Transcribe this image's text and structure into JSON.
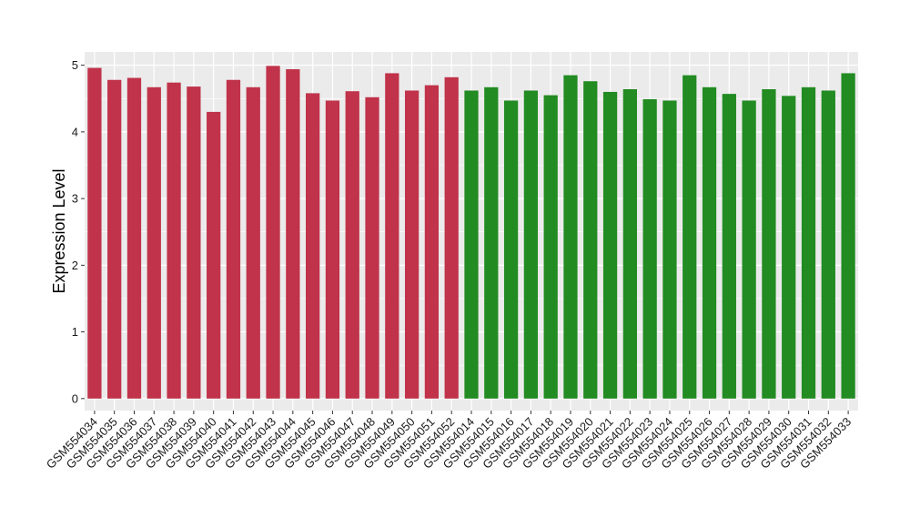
{
  "chart_data": {
    "type": "bar",
    "ylabel": "Expression Level",
    "xlabel": "",
    "ylim": [
      -0.18,
      5.2
    ],
    "yticks": [
      0,
      1,
      2,
      3,
      4,
      5
    ],
    "grid": true,
    "background": "#ebebeb",
    "grid_color": "#ffffff",
    "group_colors": [
      "#c0334a",
      "#228b22"
    ],
    "categories": [
      "GSM554034",
      "GSM554035",
      "GSM554036",
      "GSM554037",
      "GSM554038",
      "GSM554039",
      "GSM554040",
      "GSM554041",
      "GSM554042",
      "GSM554043",
      "GSM554044",
      "GSM554045",
      "GSM554046",
      "GSM554047",
      "GSM554048",
      "GSM554049",
      "GSM554050",
      "GSM554051",
      "GSM554052",
      "GSM554014",
      "GSM554015",
      "GSM554016",
      "GSM554017",
      "GSM554018",
      "GSM554019",
      "GSM554020",
      "GSM554021",
      "GSM554022",
      "GSM554023",
      "GSM554024",
      "GSM554025",
      "GSM554026",
      "GSM554027",
      "GSM554028",
      "GSM554029",
      "GSM554030",
      "GSM554031",
      "GSM554032",
      "GSM554033"
    ],
    "values": [
      4.96,
      4.78,
      4.81,
      4.67,
      4.74,
      4.68,
      4.3,
      4.78,
      4.67,
      4.99,
      4.94,
      4.58,
      4.47,
      4.61,
      4.52,
      4.88,
      4.62,
      4.7,
      4.82,
      4.62,
      4.67,
      4.47,
      4.62,
      4.55,
      4.85,
      4.76,
      4.6,
      4.64,
      4.49,
      4.47,
      4.85,
      4.67,
      4.57,
      4.47,
      4.64,
      4.54,
      4.67,
      4.62,
      4.88
    ],
    "groups": [
      0,
      0,
      0,
      0,
      0,
      0,
      0,
      0,
      0,
      0,
      0,
      0,
      0,
      0,
      0,
      0,
      0,
      0,
      0,
      1,
      1,
      1,
      1,
      1,
      1,
      1,
      1,
      1,
      1,
      1,
      1,
      1,
      1,
      1,
      1,
      1,
      1,
      1,
      1
    ]
  }
}
